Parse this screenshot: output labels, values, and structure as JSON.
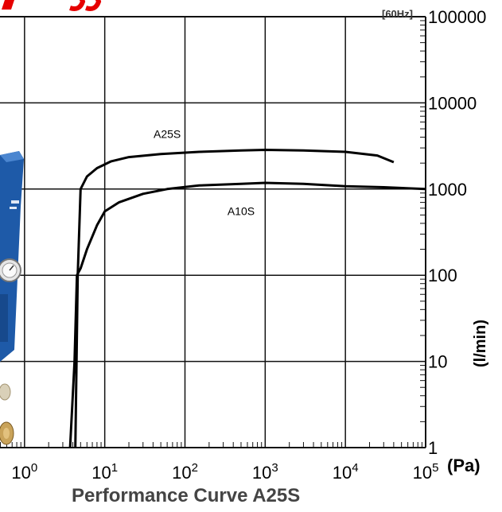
{
  "chart_data": {
    "type": "line",
    "title": "Performance Curve A25S",
    "frequency_label": "[60Hz]",
    "xlabel": "(Pa)",
    "ylabel": "(l/min)",
    "x_scale": "log",
    "y_scale": "log",
    "xlim": [
      0.1,
      100000
    ],
    "ylim": [
      1,
      100000
    ],
    "x_ticks": [
      {
        "base": "10",
        "exp": "0",
        "value": 1
      },
      {
        "base": "10",
        "exp": "1",
        "value": 10
      },
      {
        "base": "10",
        "exp": "2",
        "value": 100
      },
      {
        "base": "10",
        "exp": "3",
        "value": 1000
      },
      {
        "base": "10",
        "exp": "4",
        "value": 10000
      },
      {
        "base": "10",
        "exp": "5",
        "value": 100000
      }
    ],
    "y_ticks": [
      {
        "label": "1",
        "value": 1
      },
      {
        "label": "10",
        "value": 10
      },
      {
        "label": "100",
        "value": 100
      },
      {
        "label": "1000",
        "value": 1000
      },
      {
        "label": "10000",
        "value": 10000
      },
      {
        "label": "100000",
        "value": 100000
      }
    ],
    "grid": true,
    "series": [
      {
        "name": "A25S",
        "color": "#000000",
        "x": [
          4.3,
          4.6,
          5,
          6,
          8,
          12,
          20,
          50,
          150,
          500,
          1000,
          3000,
          10000,
          25000,
          40000
        ],
        "y": [
          1,
          100,
          1000,
          1400,
          1750,
          2100,
          2350,
          2550,
          2700,
          2800,
          2850,
          2800,
          2700,
          2450,
          2050
        ]
      },
      {
        "name": "A10S",
        "color": "#000000",
        "x": [
          3.7,
          4.2,
          4.5,
          5,
          6,
          8,
          10,
          15,
          30,
          60,
          150,
          500,
          1000,
          3000,
          10000,
          30000,
          100000
        ],
        "y": [
          1,
          10,
          100,
          120,
          200,
          380,
          550,
          700,
          880,
          1000,
          1100,
          1150,
          1180,
          1150,
          1080,
          1050,
          1000
        ]
      }
    ]
  }
}
